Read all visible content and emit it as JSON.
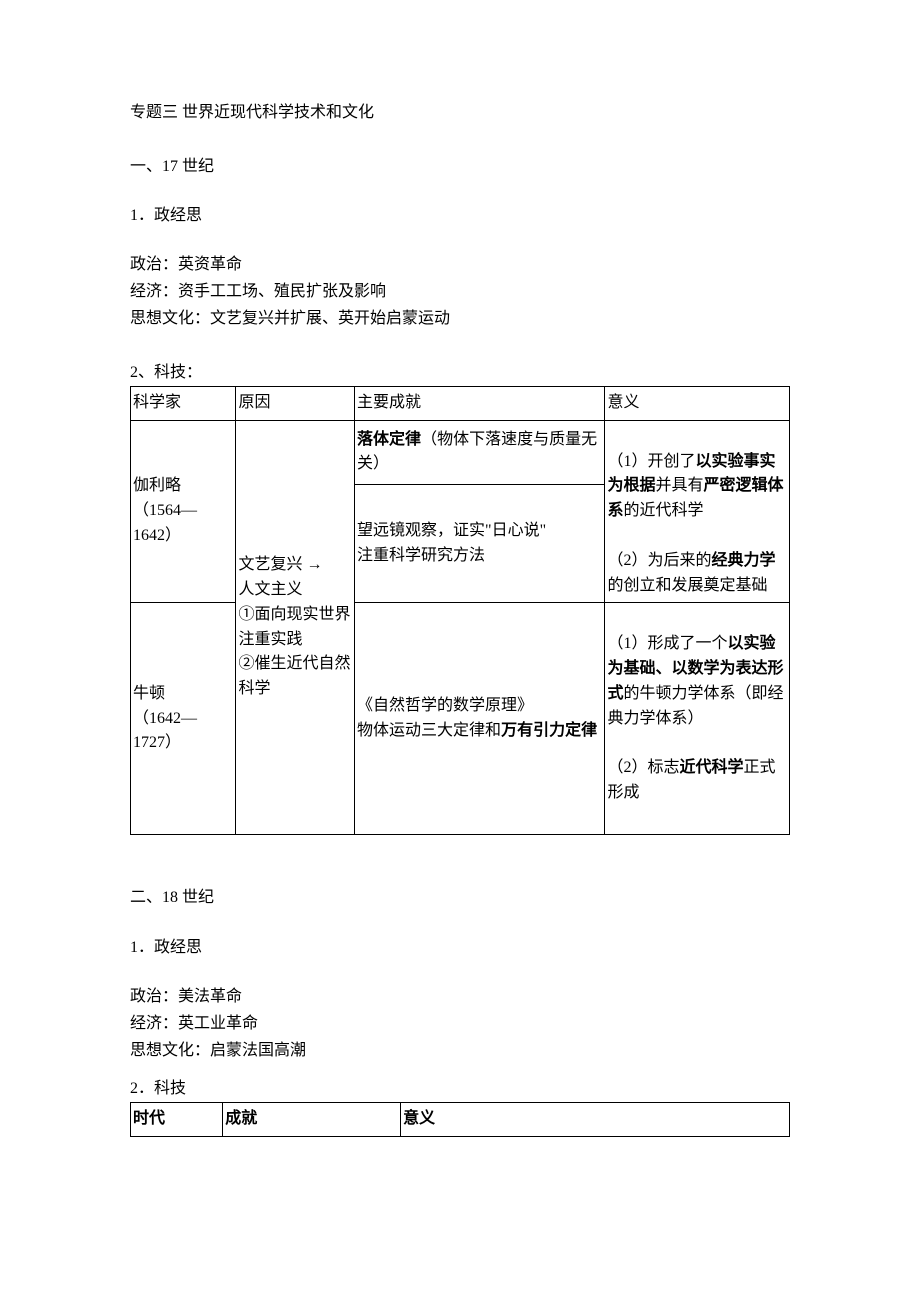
{
  "title": "专题三 世界近现代科学技术和文化",
  "sec1": {
    "heading": "一、17 世纪",
    "sub1": "1．政经思",
    "p1": "政治：英资革命",
    "p2": "经济：资手工工场、殖民扩张及影响",
    "p3": "思想文化：文艺复兴并扩展、英开始启蒙运动",
    "sub2": "2、科技：",
    "table": {
      "h1": "科学家",
      "h2": "原因",
      "h3": "主要成就",
      "h4": "意义",
      "r1_sci_a": "伽利略",
      "r1_sci_b": "（1564—1642）",
      "reason_a": "文艺复兴 →",
      "reason_b": "人文主义",
      "reason_c": "①面向现实世界注重实践",
      "reason_d": "②催生近代自然科学",
      "r1_ach_top_bold": "落体定律",
      "r1_ach_top_rest": "（物体下落速度与质量无关）",
      "r1_ach_bottom_a": "望远镜观察，证实\"日心说\"",
      "r1_ach_bottom_b": "注重科学研究方法",
      "r1_sig_1_a": "（1）开创了",
      "r1_sig_1_b": "以实验事实为根据",
      "r1_sig_1_c": "并具有",
      "r1_sig_1_d": "严密逻辑体系",
      "r1_sig_1_e": "的近代科学",
      "r1_sig_2_a": "（2）为后来的",
      "r1_sig_2_b": "经典力学",
      "r1_sig_2_c": "的创立和发展奠定基础",
      "r2_sci_a": "牛顿",
      "r2_sci_b": "（1642—1727）",
      "r2_ach_a": "《自然哲学的数学原理》",
      "r2_ach_b_pre": "物体运动三大定律和",
      "r2_ach_b_bold": "万有引力定律",
      "r2_sig_1_a": "（1）形成了一个",
      "r2_sig_1_b": "以实验为基础、以数学为表达形式",
      "r2_sig_1_c": "的牛顿力学体系（即经典力学体系）",
      "r2_sig_2_a": "（2）标志",
      "r2_sig_2_b": "近代科学",
      "r2_sig_2_c": "正式形成"
    }
  },
  "sec2": {
    "heading": "二、18 世纪",
    "sub1": "1．政经思",
    "p1": "政治：美法革命",
    "p2": "经济：英工业革命",
    "p3": "思想文化：启蒙法国高潮",
    "sub2": "2．科技",
    "table": {
      "h1": "时代",
      "h2": "成就",
      "h3": "意义"
    }
  }
}
